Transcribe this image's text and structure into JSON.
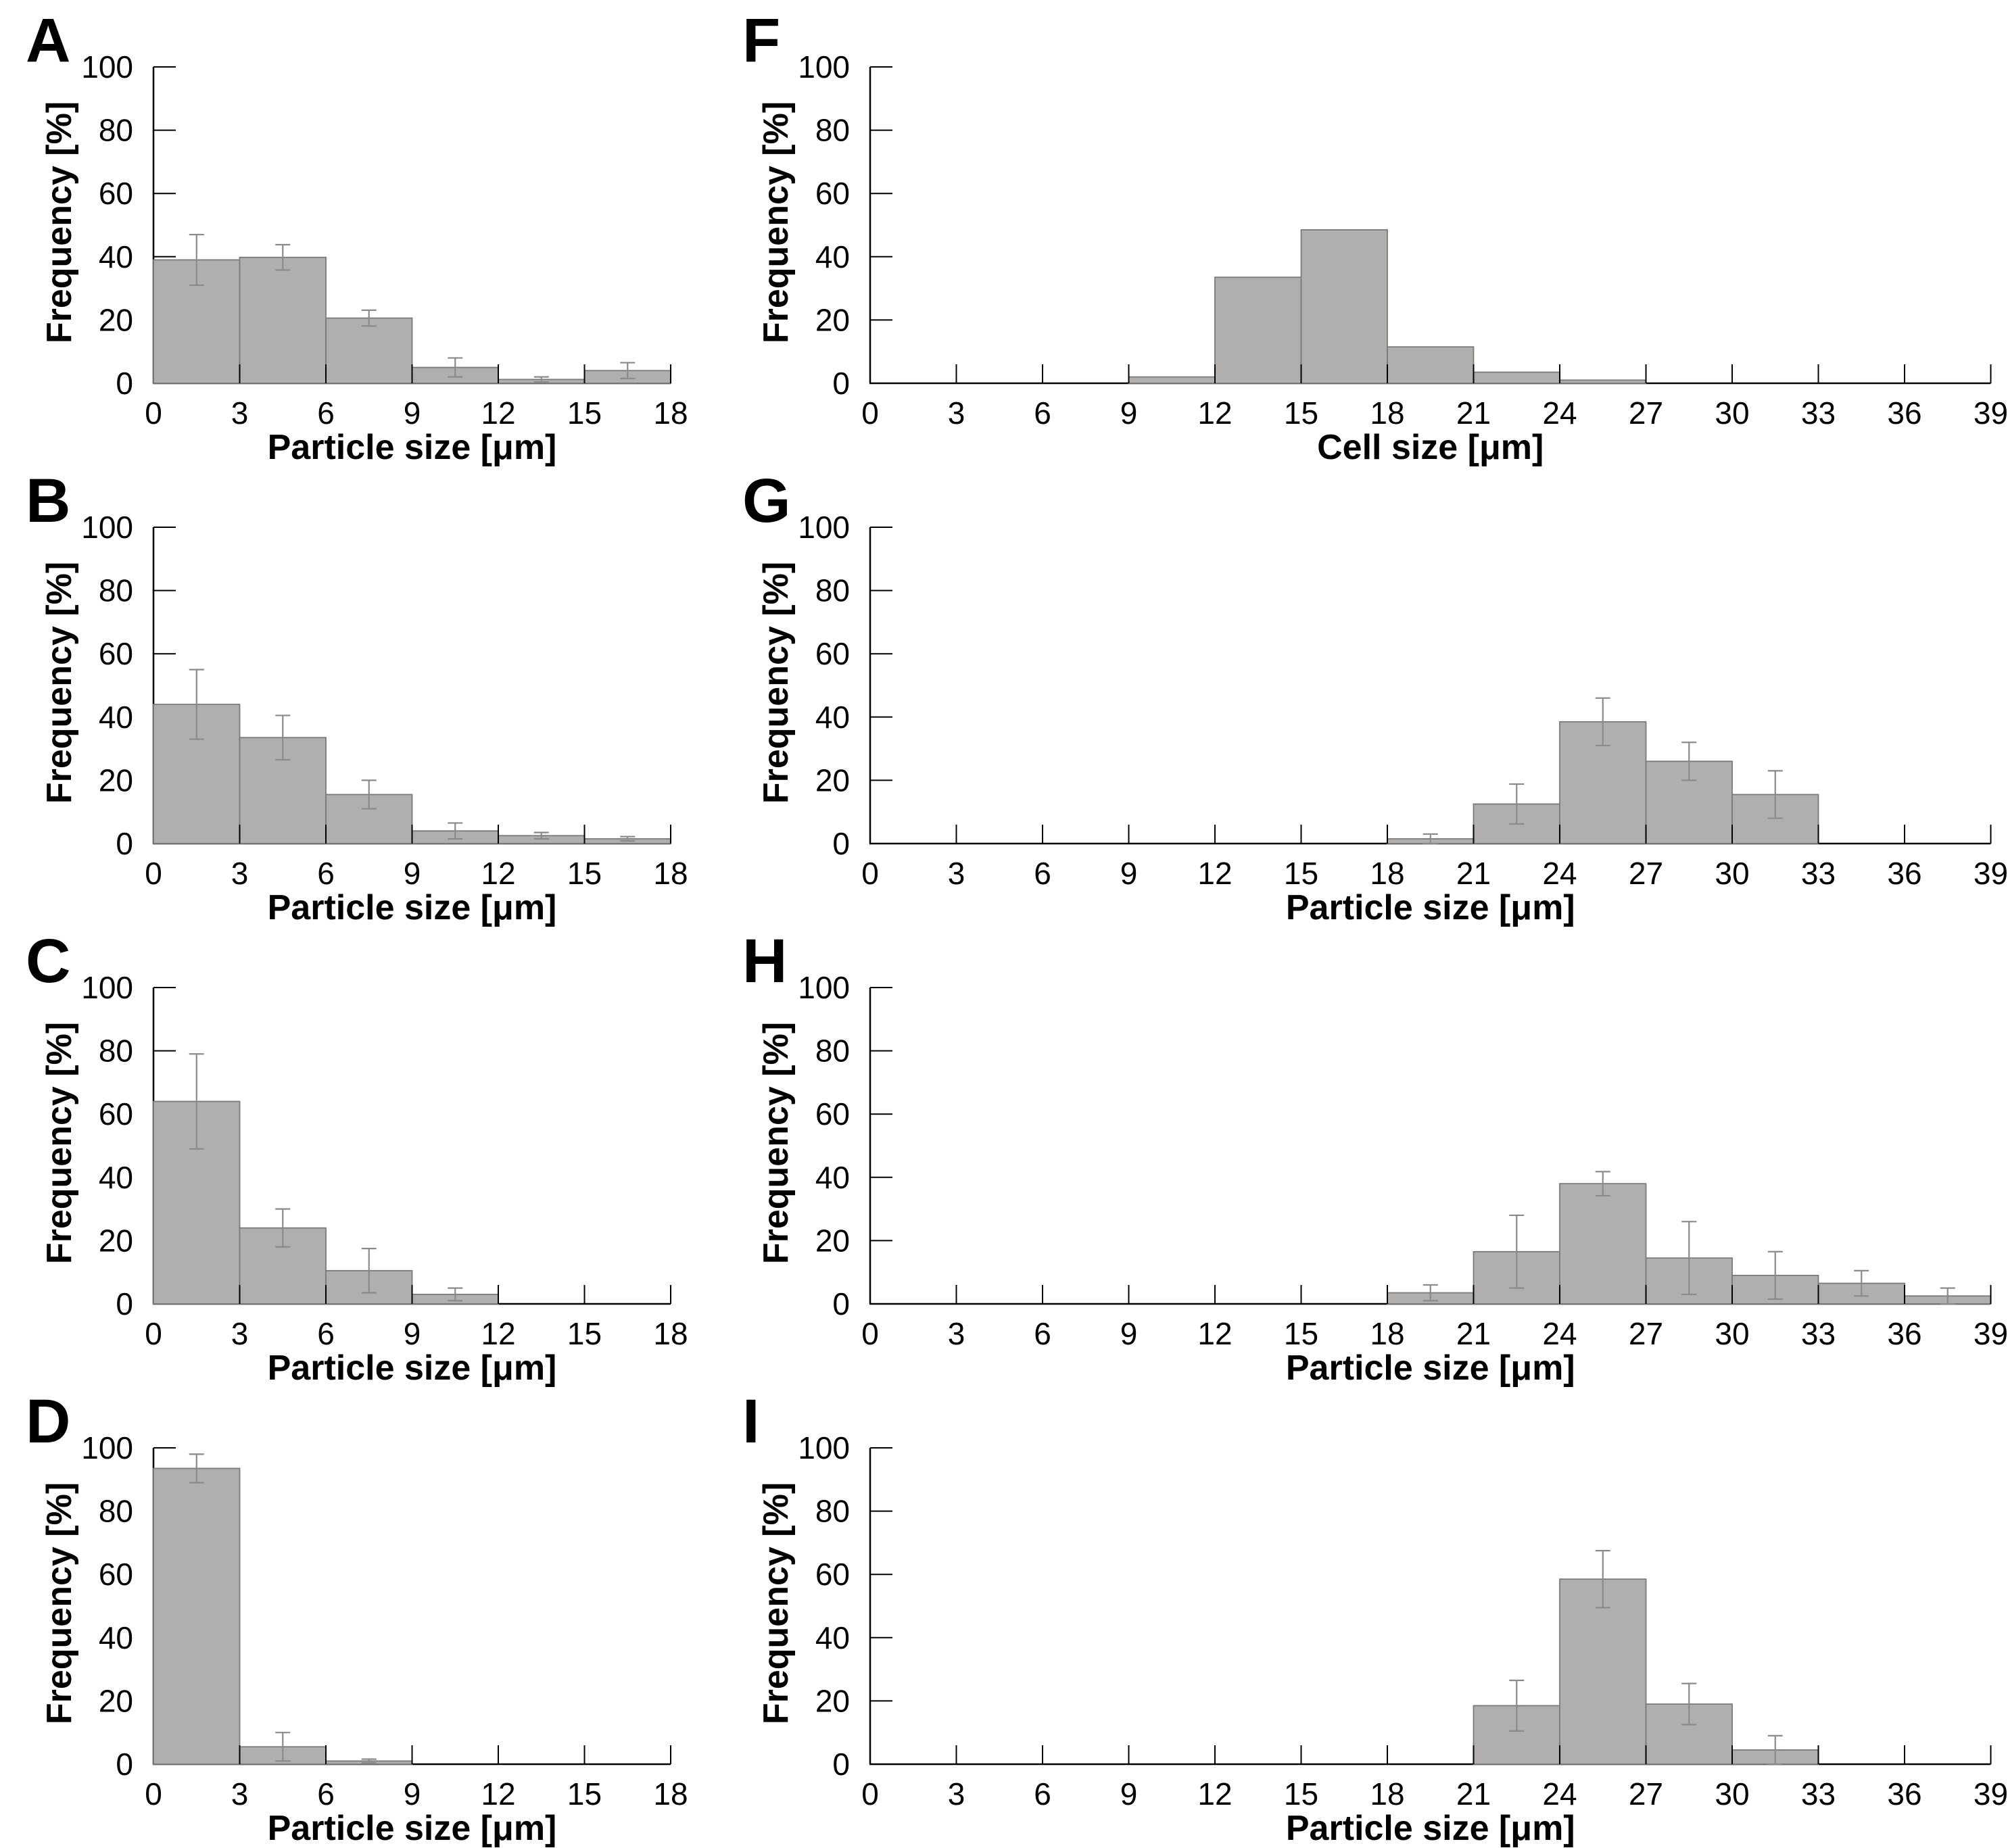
{
  "figure": {
    "background": "#ffffff",
    "bar_fill": "#b1afae",
    "bar_stroke": "#7c7a78",
    "error_bar_color": "#8a8a8a",
    "axis_color": "#000000",
    "ylabel_all": "Frequency [%]"
  },
  "chart_data": [
    {
      "letter": "A",
      "type": "bar",
      "xlabel": "Particle size [μm]",
      "ylabel": "Frequency [%]",
      "xlim": [
        0,
        18
      ],
      "ylim": [
        0,
        100
      ],
      "xtick_step": 3,
      "ytick_step": 20,
      "grid": false,
      "bin_width": 3,
      "bin_starts": [
        0,
        3,
        6,
        9,
        12,
        15
      ],
      "values": [
        39,
        39.8,
        20.6,
        5,
        1.2,
        4
      ],
      "errors": [
        8,
        4,
        2.5,
        3,
        0.8,
        2.5
      ]
    },
    {
      "letter": "B",
      "type": "bar",
      "xlabel": "Particle size [μm]",
      "ylabel": "Frequency [%]",
      "xlim": [
        0,
        18
      ],
      "ylim": [
        0,
        100
      ],
      "xtick_step": 3,
      "ytick_step": 20,
      "grid": false,
      "bin_width": 3,
      "bin_starts": [
        0,
        3,
        6,
        9,
        12,
        15
      ],
      "values": [
        44,
        33.5,
        15.5,
        4,
        2.5,
        1.5
      ],
      "errors": [
        11,
        7,
        4.5,
        2.5,
        1,
        0.7
      ]
    },
    {
      "letter": "C",
      "type": "bar",
      "xlabel": "Particle size [μm]",
      "ylabel": "Frequency [%]",
      "xlim": [
        0,
        18
      ],
      "ylim": [
        0,
        100
      ],
      "xtick_step": 3,
      "ytick_step": 20,
      "grid": false,
      "bin_width": 3,
      "bin_starts": [
        0,
        3,
        6,
        9,
        12,
        15
      ],
      "values": [
        64,
        24,
        10.5,
        3,
        0,
        0
      ],
      "errors": [
        15,
        6,
        7,
        2,
        0,
        0
      ]
    },
    {
      "letter": "D",
      "type": "bar",
      "xlabel": "Particle size [μm]",
      "ylabel": "Frequency [%]",
      "xlim": [
        0,
        18
      ],
      "ylim": [
        0,
        100
      ],
      "xtick_step": 3,
      "ytick_step": 20,
      "grid": false,
      "bin_width": 3,
      "bin_starts": [
        0,
        3,
        6,
        9,
        12,
        15
      ],
      "values": [
        93.5,
        5.5,
        1,
        0,
        0,
        0
      ],
      "errors": [
        4.5,
        4.5,
        0.6,
        0,
        0,
        0
      ]
    },
    {
      "letter": "F",
      "type": "bar",
      "xlabel": "Cell size [μm]",
      "ylabel": "Frequency [%]",
      "xlim": [
        0,
        39
      ],
      "ylim": [
        0,
        100
      ],
      "xtick_step": 3,
      "ytick_step": 20,
      "grid": false,
      "bin_width": 3,
      "bin_starts": [
        0,
        3,
        6,
        9,
        12,
        15,
        18,
        21,
        24,
        27,
        30,
        33,
        36
      ],
      "values": [
        0,
        0,
        0,
        2,
        33.5,
        48.5,
        11.5,
        3.5,
        1,
        0,
        0,
        0,
        0
      ],
      "errors": [
        0,
        0,
        0,
        0,
        0,
        0,
        0,
        0,
        0,
        0,
        0,
        0,
        0
      ]
    },
    {
      "letter": "G",
      "type": "bar",
      "xlabel": "Particle size [μm]",
      "ylabel": "Frequency [%]",
      "xlim": [
        0,
        39
      ],
      "ylim": [
        0,
        100
      ],
      "xtick_step": 3,
      "ytick_step": 20,
      "grid": false,
      "bin_width": 3,
      "bin_starts": [
        0,
        3,
        6,
        9,
        12,
        15,
        18,
        21,
        24,
        27,
        30,
        33,
        36
      ],
      "values": [
        0,
        0,
        0,
        0,
        0,
        0,
        1.5,
        12.5,
        38.5,
        26,
        15.5,
        0,
        0
      ],
      "errors": [
        0,
        0,
        0,
        0,
        0,
        0,
        1.5,
        6.3,
        7.5,
        6,
        7.5,
        0,
        0
      ]
    },
    {
      "letter": "H",
      "type": "bar",
      "xlabel": "Particle size [μm]",
      "ylabel": "Frequency [%]",
      "xlim": [
        0,
        39
      ],
      "ylim": [
        0,
        100
      ],
      "xtick_step": 3,
      "ytick_step": 20,
      "grid": false,
      "bin_width": 3,
      "bin_starts": [
        0,
        3,
        6,
        9,
        12,
        15,
        18,
        21,
        24,
        27,
        30,
        33,
        36
      ],
      "values": [
        0,
        0,
        0,
        0,
        0,
        0,
        3.5,
        16.5,
        38,
        14.5,
        9,
        6.5,
        2.5
      ],
      "errors": [
        0,
        0,
        0,
        0,
        0,
        0,
        2.5,
        11.5,
        3.8,
        11.5,
        7.5,
        4,
        2.5
      ]
    },
    {
      "letter": "I",
      "type": "bar",
      "xlabel": "Particle size [μm]",
      "ylabel": "Frequency [%]",
      "xlim": [
        0,
        39
      ],
      "ylim": [
        0,
        100
      ],
      "xtick_step": 3,
      "ytick_step": 20,
      "grid": false,
      "bin_width": 3,
      "bin_starts": [
        0,
        3,
        6,
        9,
        12,
        15,
        18,
        21,
        24,
        27,
        30,
        33,
        36
      ],
      "values": [
        0,
        0,
        0,
        0,
        0,
        0,
        0,
        18.5,
        58.5,
        19,
        4.5,
        0,
        0
      ],
      "errors": [
        0,
        0,
        0,
        0,
        0,
        0,
        0,
        8,
        9,
        6.5,
        4.5,
        0,
        0
      ]
    }
  ]
}
